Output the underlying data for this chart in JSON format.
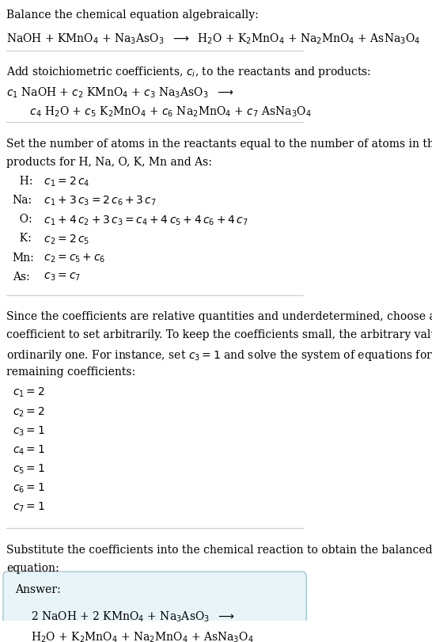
{
  "title": "Balance the chemical equation algebraically:",
  "equation_line1": "NaOH + KMnO$_4$ + Na$_3$AsO$_3$  $\\longrightarrow$  H$_2$O + K$_2$MnO$_4$ + Na$_2$MnO$_4$ + AsNa$_3$O$_4$",
  "section2_title": "Add stoichiometric coefficients, $c_i$, to the reactants and products:",
  "coeff_eq_line1": "$c_1$ NaOH + $c_2$ KMnO$_4$ + $c_3$ Na$_3$AsO$_3$  $\\longrightarrow$",
  "coeff_eq_line2": "    $c_4$ H$_2$O + $c_5$ K$_2$MnO$_4$ + $c_6$ Na$_2$MnO$_4$ + $c_7$ AsNa$_3$O$_4$",
  "section3_title1": "Set the number of atoms in the reactants equal to the number of atoms in the",
  "section3_title2": "products for H, Na, O, K, Mn and As:",
  "atom_eqs": [
    [
      "  H:",
      "  $c_1 = 2\\,c_4$"
    ],
    [
      "Na:",
      "  $c_1 + 3\\,c_3 = 2\\,c_6 + 3\\,c_7$"
    ],
    [
      "  O:",
      "  $c_1 + 4\\,c_2 + 3\\,c_3 = c_4 + 4\\,c_5 + 4\\,c_6 + 4\\,c_7$"
    ],
    [
      "  K:",
      "  $c_2 = 2\\,c_5$"
    ],
    [
      "Mn:",
      "  $c_2 = c_5 + c_6$"
    ],
    [
      "As:",
      "  $c_3 = c_7$"
    ]
  ],
  "section4_title1": "Since the coefficients are relative quantities and underdetermined, choose a",
  "section4_title2": "coefficient to set arbitrarily. To keep the coefficients small, the arbitrary value is",
  "section4_title3": "ordinarily one. For instance, set $c_3 = 1$ and solve the system of equations for the",
  "section4_title4": "remaining coefficients:",
  "solutions": [
    "$c_1 = 2$",
    "$c_2 = 2$",
    "$c_3 = 1$",
    "$c_4 = 1$",
    "$c_5 = 1$",
    "$c_6 = 1$",
    "$c_7 = 1$"
  ],
  "section5_title1": "Substitute the coefficients into the chemical reaction to obtain the balanced",
  "section5_title2": "equation:",
  "answer_label": "Answer:",
  "answer_line1": "2 NaOH + 2 KMnO$_4$ + Na$_3$AsO$_3$  $\\longrightarrow$",
  "answer_line2": "H$_2$O + K$_2$MnO$_4$ + Na$_2$MnO$_4$ + AsNa$_3$O$_4$",
  "bg_color": "#ffffff",
  "answer_box_color": "#e8f4f8",
  "answer_box_border": "#a0c8d8",
  "text_color": "#000000",
  "separator_color": "#cccccc",
  "font_size": 10,
  "title_font_size": 10
}
